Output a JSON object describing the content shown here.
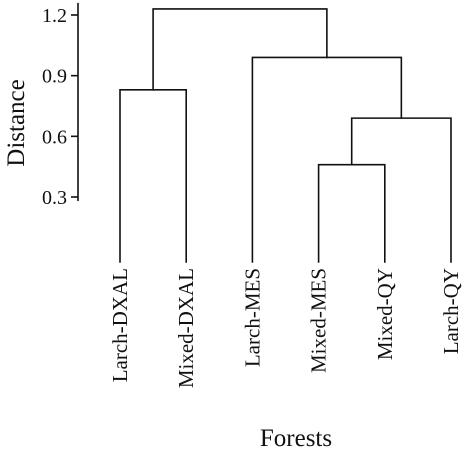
{
  "chart_data": {
    "type": "dendrogram",
    "ylabel": "Distance",
    "xlabel": "Forests",
    "ylim": [
      0.28,
      1.26
    ],
    "yticks": [
      0.3,
      0.6,
      0.9,
      1.2
    ],
    "ytick_labels": [
      "0.3",
      "0.6",
      "0.9",
      "1.2"
    ],
    "leaves": [
      "Larch-DXAL",
      "Mixed-DXAL",
      "Larch-MES",
      "Mixed-MES",
      "Mixed-QY",
      "Larch-QY"
    ],
    "merges": [
      {
        "left": [
          "leaf",
          3
        ],
        "right": [
          "leaf",
          4
        ],
        "height": 0.46
      },
      {
        "left": [
          "node",
          0
        ],
        "right": [
          "leaf",
          5
        ],
        "height": 0.69
      },
      {
        "left": [
          "leaf",
          0
        ],
        "right": [
          "leaf",
          1
        ],
        "height": 0.83
      },
      {
        "left": [
          "leaf",
          2
        ],
        "right": [
          "node",
          1
        ],
        "height": 0.99
      },
      {
        "left": [
          "node",
          2
        ],
        "right": [
          "node",
          3
        ],
        "height": 1.23
      }
    ]
  }
}
